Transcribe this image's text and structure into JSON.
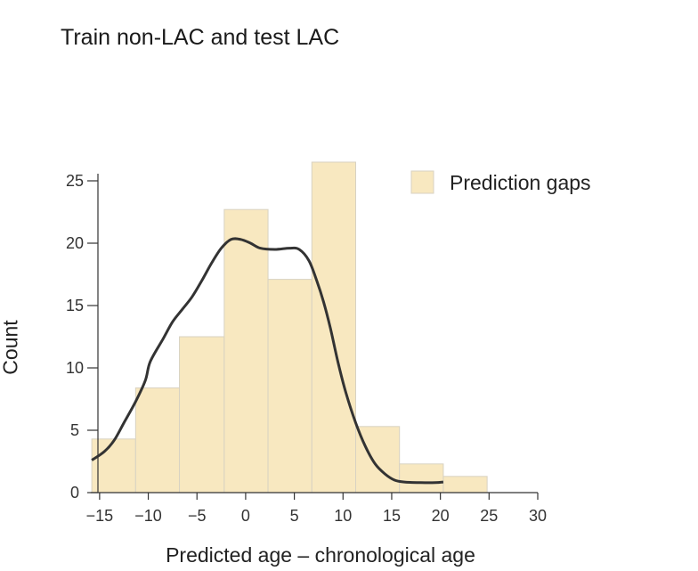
{
  "chart_data": {
    "type": "bar",
    "title": "Train non-LAC and test LAC",
    "xlabel": "Predicted age – chronological age",
    "ylabel": "Count",
    "xlim": [
      -17,
      30
    ],
    "ylim": [
      0,
      27
    ],
    "x_ticks": [
      -15,
      -10,
      -5,
      0,
      5,
      10,
      15,
      20,
      25,
      30
    ],
    "y_ticks": [
      0,
      5,
      10,
      15,
      20,
      25
    ],
    "bins": [
      {
        "x0": -15.8,
        "x1": -11.3,
        "value": 4.3
      },
      {
        "x0": -11.3,
        "x1": -6.8,
        "value": 8.4
      },
      {
        "x0": -6.8,
        "x1": -2.2,
        "value": 12.5
      },
      {
        "x0": -2.2,
        "x1": 2.3,
        "value": 22.7
      },
      {
        "x0": 2.3,
        "x1": 6.8,
        "value": 17.1
      },
      {
        "x0": 6.8,
        "x1": 11.3,
        "value": 26.5
      },
      {
        "x0": 11.3,
        "x1": 15.8,
        "value": 5.3
      },
      {
        "x0": 15.8,
        "x1": 20.3,
        "value": 2.3
      },
      {
        "x0": 20.3,
        "x1": 24.8,
        "value": 1.3
      }
    ],
    "kde": [
      [
        -15.8,
        2.6
      ],
      [
        -14.5,
        3.3
      ],
      [
        -13.5,
        4.2
      ],
      [
        -12.5,
        5.6
      ],
      [
        -11.3,
        7.3
      ],
      [
        -10.3,
        9.0
      ],
      [
        -9.8,
        10.5
      ],
      [
        -8.5,
        12.3
      ],
      [
        -7.5,
        13.7
      ],
      [
        -6.5,
        14.7
      ],
      [
        -5.5,
        15.7
      ],
      [
        -4.5,
        17.0
      ],
      [
        -3.5,
        18.4
      ],
      [
        -2.5,
        19.6
      ],
      [
        -1.5,
        20.3
      ],
      [
        -0.5,
        20.3
      ],
      [
        0.5,
        20.0
      ],
      [
        1.5,
        19.6
      ],
      [
        3.0,
        19.5
      ],
      [
        4.5,
        19.6
      ],
      [
        5.5,
        19.5
      ],
      [
        6.5,
        18.6
      ],
      [
        7.3,
        17.0
      ],
      [
        8.0,
        15.3
      ],
      [
        8.7,
        13.2
      ],
      [
        9.5,
        10.4
      ],
      [
        10.3,
        8.0
      ],
      [
        11.3,
        5.6
      ],
      [
        12.3,
        3.7
      ],
      [
        13.3,
        2.3
      ],
      [
        14.3,
        1.5
      ],
      [
        15.3,
        1.0
      ],
      [
        16.3,
        0.85
      ],
      [
        18.0,
        0.8
      ],
      [
        19.5,
        0.8
      ],
      [
        20.3,
        0.85
      ]
    ],
    "legend": {
      "label": "Prediction gaps",
      "position": "top-right"
    },
    "colors": {
      "bar_fill": "#f8e8c0",
      "bar_edge": "#d8d2c2",
      "kde": "#333333",
      "axis": "#333333"
    }
  }
}
